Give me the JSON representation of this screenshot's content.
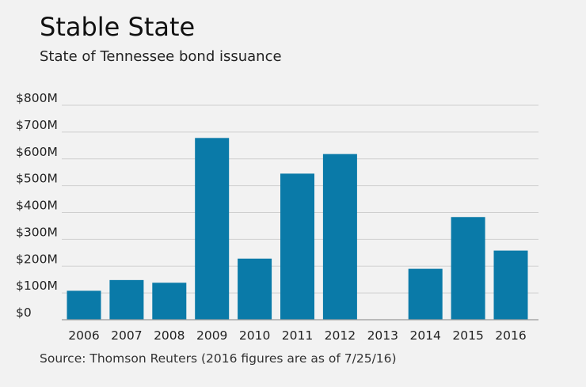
{
  "chart_data": {
    "type": "bar",
    "title": "Stable State",
    "subtitle": "State of Tennessee bond issuance",
    "source": "Source: Thomson Reuters (2016 figures are as of 7/25/16)",
    "categories": [
      "2006",
      "2007",
      "2008",
      "2009",
      "2010",
      "2011",
      "2012",
      "2013",
      "2014",
      "2015",
      "2016"
    ],
    "values": [
      108,
      148,
      138,
      678,
      228,
      545,
      618,
      0,
      190,
      383,
      258
    ],
    "unit": "$M",
    "ylim": [
      0,
      800
    ],
    "yticks": [
      0,
      100,
      200,
      300,
      400,
      500,
      600,
      700,
      800
    ],
    "ytick_labels": [
      "$0",
      "$100M",
      "$200M",
      "$300M",
      "$400M",
      "$500M",
      "$600M",
      "$700M",
      "$800M"
    ],
    "xlabel": "",
    "ylabel": "",
    "grid": true,
    "legend": "none",
    "bar_color": "#0a7aa8",
    "grid_color": "#cfcfcf",
    "axis_color": "#9a9a9a"
  }
}
